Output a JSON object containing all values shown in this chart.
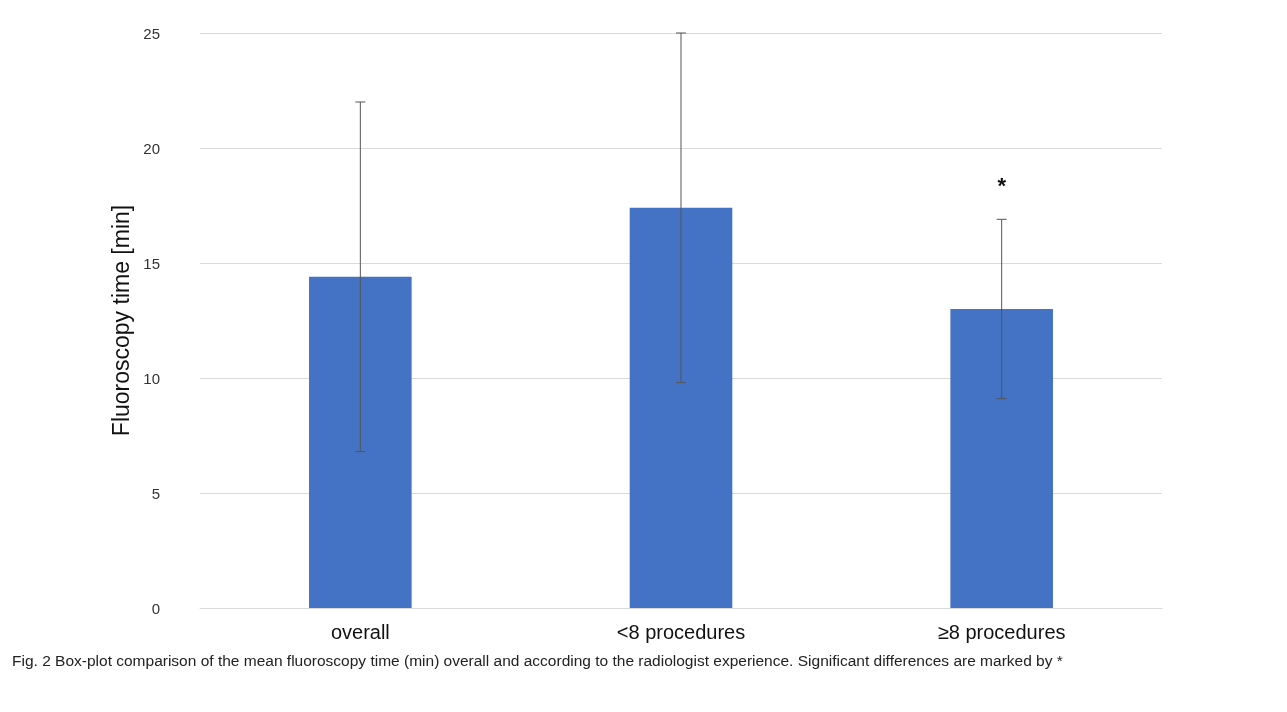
{
  "chart_data": {
    "type": "bar",
    "ylabel": "Fluoroscopy time [min]",
    "categories": [
      "overall",
      "<8 procedures",
      "≥8 procedures"
    ],
    "values": [
      14.4,
      17.4,
      13.0
    ],
    "errors": [
      7.6,
      7.6,
      3.9
    ],
    "color": "#4472c4",
    "ylim": [
      0,
      25
    ],
    "yticks": [
      0,
      5,
      10,
      15,
      20,
      25
    ],
    "grid": "y",
    "annotations": [
      "*",
      "Fig. 2 Box-plot comparison of the mean fluoroscopy time (min) overall and according to the radiologist experience. Significant differences are marked by *"
    ]
  }
}
